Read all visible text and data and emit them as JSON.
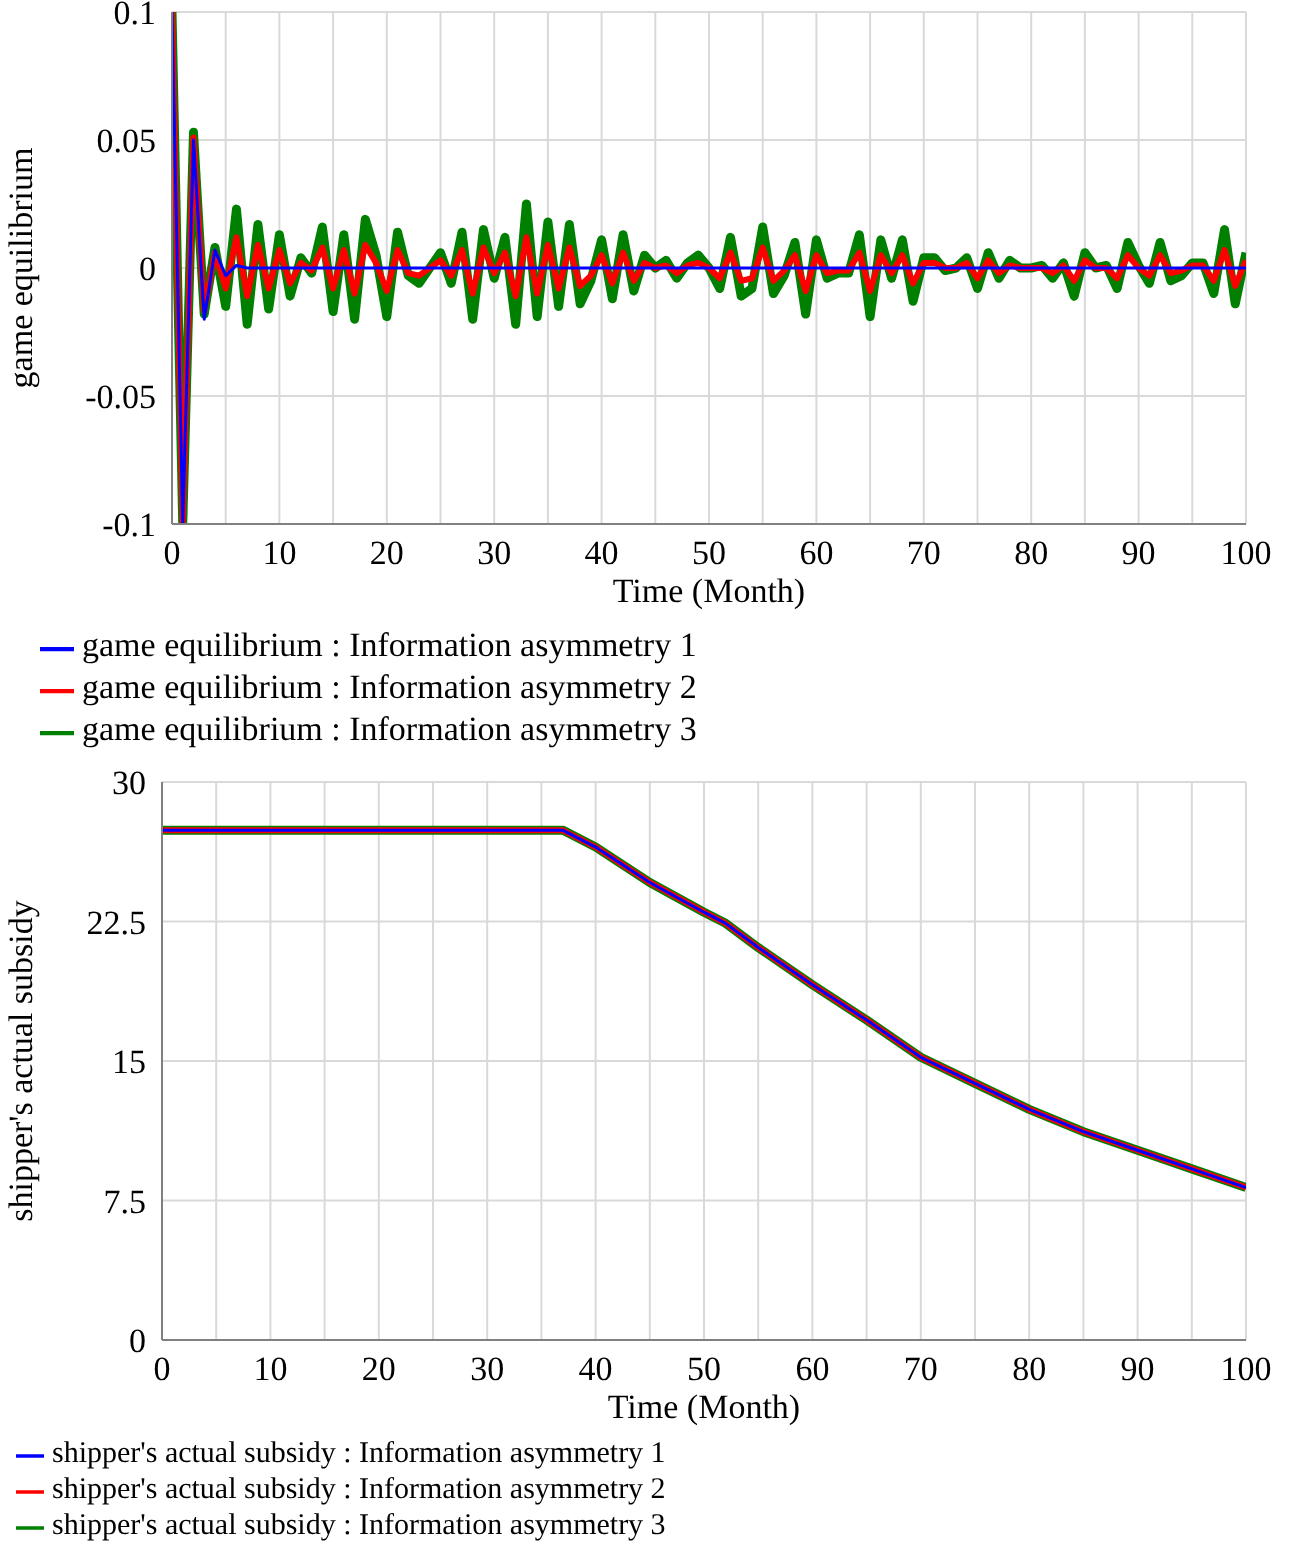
{
  "chart_data": [
    {
      "type": "line",
      "xlabel": "Time (Month)",
      "ylabel": "game equilibrium",
      "xlim": [
        0,
        100
      ],
      "ylim": [
        -0.1,
        0.1
      ],
      "xticks": [
        0,
        {
          "value": 5,
          "label": null
        },
        10,
        {
          "value": 15,
          "label": null
        },
        20,
        {
          "value": 25,
          "label": null
        },
        30,
        {
          "value": 35,
          "label": null
        },
        40,
        {
          "value": 45,
          "label": null
        },
        50,
        {
          "value": 55,
          "label": null
        },
        60,
        {
          "value": 65,
          "label": null
        },
        70,
        {
          "value": 75,
          "label": null
        },
        80,
        {
          "value": 85,
          "label": null
        },
        90,
        {
          "value": 95,
          "label": null
        },
        100
      ],
      "yticks": [
        -0.1,
        -0.05,
        0,
        0.05,
        0.1
      ],
      "grid": true,
      "legend": "bottom",
      "marker": "none",
      "line_style": "solid",
      "x": [
        0,
        1,
        2,
        3,
        4,
        5,
        6,
        7,
        8,
        9,
        10,
        11,
        12,
        13,
        14,
        15,
        16,
        17,
        18,
        19,
        20,
        21,
        22,
        23,
        24,
        25,
        26,
        27,
        28,
        29,
        30,
        31,
        32,
        33,
        34,
        35,
        36,
        37,
        38,
        39,
        40,
        41,
        42,
        43,
        44,
        45,
        46,
        47,
        48,
        49,
        50,
        51,
        52,
        53,
        54,
        55,
        56,
        57,
        58,
        59,
        60,
        61,
        62,
        63,
        64,
        65,
        66,
        67,
        68,
        69,
        70,
        71,
        72,
        73,
        74,
        75,
        76,
        77,
        78,
        79,
        80,
        81,
        82,
        83,
        84,
        85,
        86,
        87,
        88,
        89,
        90,
        91,
        92,
        93,
        94,
        95,
        96,
        97,
        98,
        99,
        100
      ],
      "series": [
        {
          "name": "game equilibrium : Information asymmetry 1",
          "color": "#0000ff",
          "values": [
            0.1,
            -0.1,
            0.05,
            -0.02,
            0.007,
            -0.003,
            0.001,
            0,
            0,
            0,
            0,
            0,
            0,
            0,
            0,
            0,
            0,
            0,
            0,
            0,
            0,
            0,
            0,
            0,
            0,
            0,
            0,
            0,
            0,
            0,
            0,
            0,
            0,
            0,
            0,
            0,
            0,
            0,
            0,
            0,
            0,
            0,
            0,
            0,
            0,
            0,
            0,
            0,
            0,
            0,
            0,
            0,
            0,
            0,
            0,
            0,
            0,
            0,
            0,
            0,
            0,
            0,
            0,
            0,
            0,
            0,
            0,
            0,
            0,
            0,
            0,
            0,
            0,
            0,
            0,
            0,
            0,
            0,
            0,
            0,
            0,
            0,
            0,
            0,
            0,
            0,
            0,
            0,
            0,
            0,
            0,
            0,
            0,
            0,
            0,
            0,
            0,
            0,
            0,
            0,
            0
          ]
        },
        {
          "name": "game equilibrium : Information asymmetry 2",
          "color": "#ff0000",
          "values": [
            0.1,
            -0.1,
            0.051,
            -0.017,
            0.006,
            -0.008,
            0.012,
            -0.011,
            0.009,
            -0.008,
            0.007,
            -0.006,
            0.002,
            -0.001,
            0.008,
            -0.008,
            0.007,
            -0.01,
            0.009,
            0.002,
            -0.009,
            0.007,
            -0.002,
            -0.003,
            0,
            0.003,
            -0.003,
            0.007,
            -0.01,
            0.008,
            -0.002,
            0.006,
            -0.011,
            0.012,
            -0.01,
            0.009,
            -0.008,
            0.008,
            -0.007,
            -0.003,
            0.005,
            -0.006,
            0.006,
            -0.005,
            0.002,
            0,
            0.001,
            -0.002,
            0.001,
            0.002,
            0,
            -0.004,
            0.006,
            -0.005,
            -0.004,
            0.008,
            -0.005,
            -0.001,
            0.005,
            -0.009,
            0.005,
            -0.002,
            -0.001,
            -0.001,
            0.006,
            -0.009,
            0.005,
            -0.002,
            0.005,
            -0.006,
            0.002,
            0.002,
            0,
            0,
            0.002,
            -0.004,
            0.003,
            -0.002,
            0.001,
            0,
            0,
            0,
            -0.002,
            0.001,
            -0.005,
            0.003,
            0,
            0,
            -0.004,
            0.005,
            0,
            -0.003,
            0.005,
            -0.002,
            -0.001,
            0.001,
            0.001,
            -0.005,
            0.007,
            -0.007,
            0.003
          ]
        },
        {
          "name": "game equilibrium : Information asymmetry 3",
          "color": "#008000",
          "values": [
            0.1,
            -0.1,
            0.053,
            -0.018,
            0.008,
            -0.015,
            0.023,
            -0.022,
            0.017,
            -0.016,
            0.013,
            -0.011,
            0.004,
            -0.002,
            0.016,
            -0.017,
            0.013,
            -0.02,
            0.019,
            0.005,
            -0.019,
            0.014,
            -0.003,
            -0.006,
            0,
            0.006,
            -0.006,
            0.014,
            -0.02,
            0.015,
            -0.004,
            0.012,
            -0.022,
            0.025,
            -0.019,
            0.018,
            -0.015,
            0.017,
            -0.014,
            -0.005,
            0.011,
            -0.012,
            0.013,
            -0.009,
            0.005,
            0,
            0.003,
            -0.004,
            0.002,
            0.005,
            0,
            -0.008,
            0.012,
            -0.011,
            -0.008,
            0.016,
            -0.01,
            -0.003,
            0.01,
            -0.018,
            0.011,
            -0.004,
            -0.002,
            -0.002,
            0.013,
            -0.019,
            0.011,
            -0.004,
            0.011,
            -0.013,
            0.004,
            0.004,
            -0.001,
            0,
            0.004,
            -0.008,
            0.006,
            -0.004,
            0.003,
            0,
            0,
            0.001,
            -0.004,
            0.002,
            -0.011,
            0.006,
            0,
            0.001,
            -0.008,
            0.01,
            0.001,
            -0.006,
            0.01,
            -0.005,
            -0.003,
            0.002,
            0.002,
            -0.01,
            0.015,
            -0.014,
            0.006
          ]
        }
      ]
    },
    {
      "type": "line",
      "xlabel": "Time (Month)",
      "ylabel": "shipper's actual subsidy",
      "xlim": [
        0,
        100
      ],
      "ylim": [
        0,
        30
      ],
      "xticks": [
        0,
        {
          "value": 5,
          "label": null
        },
        10,
        {
          "value": 15,
          "label": null
        },
        20,
        {
          "value": 25,
          "label": null
        },
        30,
        {
          "value": 35,
          "label": null
        },
        40,
        {
          "value": 45,
          "label": null
        },
        50,
        {
          "value": 55,
          "label": null
        },
        60,
        {
          "value": 65,
          "label": null
        },
        70,
        {
          "value": 75,
          "label": null
        },
        80,
        {
          "value": 85,
          "label": null
        },
        90,
        {
          "value": 95,
          "label": null
        },
        100
      ],
      "yticks": [
        0,
        7.5,
        15,
        22.5,
        30
      ],
      "grid": true,
      "legend": "bottom",
      "marker": "none",
      "line_style": "solid",
      "x": [
        0,
        5,
        10,
        15,
        20,
        25,
        30,
        35,
        37,
        40,
        45,
        50,
        52,
        55,
        60,
        65,
        70,
        75,
        80,
        85,
        90,
        95,
        100
      ],
      "series": [
        {
          "name": "shipper's actual subsidy : Information asymmetry 1",
          "color": "#0000ff",
          "values": [
            27.4,
            27.4,
            27.4,
            27.4,
            27.4,
            27.4,
            27.4,
            27.4,
            27.4,
            26.5,
            24.6,
            23.0,
            22.4,
            21.1,
            19.1,
            17.2,
            15.2,
            13.8,
            12.4,
            11.2,
            10.2,
            9.2,
            8.2
          ]
        },
        {
          "name": "shipper's actual subsidy : Information asymmetry 2",
          "color": "#ff0000",
          "values": [
            27.4,
            27.4,
            27.4,
            27.4,
            27.4,
            27.4,
            27.4,
            27.4,
            27.4,
            26.5,
            24.6,
            23.0,
            22.4,
            21.1,
            19.1,
            17.2,
            15.2,
            13.8,
            12.4,
            11.2,
            10.2,
            9.2,
            8.2
          ]
        },
        {
          "name": "shipper's actual subsidy : Information asymmetry 3",
          "color": "#008000",
          "values": [
            27.4,
            27.4,
            27.4,
            27.4,
            27.4,
            27.4,
            27.4,
            27.4,
            27.4,
            26.5,
            24.6,
            23.0,
            22.4,
            21.1,
            19.1,
            17.2,
            15.2,
            13.8,
            12.4,
            11.2,
            10.2,
            9.2,
            8.2
          ]
        }
      ]
    }
  ]
}
